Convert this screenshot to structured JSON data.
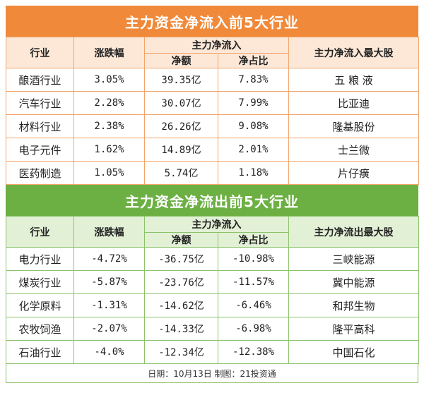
{
  "inflow": {
    "title": "主力资金净流入前5大行业",
    "headers": {
      "industry": "行业",
      "change": "涨跌幅",
      "main_flow": "主力净流入",
      "net_amount": "净额",
      "net_ratio": "净占比",
      "top_stock": "主力净流入最大股"
    },
    "rows": [
      {
        "industry": "酿酒行业",
        "change": "3.05%",
        "amount": "39.35亿",
        "ratio": "7.83%",
        "stock": "五 粮 液"
      },
      {
        "industry": "汽车行业",
        "change": "2.28%",
        "amount": "30.07亿",
        "ratio": "7.99%",
        "stock": "比亚迪"
      },
      {
        "industry": "材料行业",
        "change": "2.38%",
        "amount": "26.26亿",
        "ratio": "9.08%",
        "stock": "隆基股份"
      },
      {
        "industry": "电子元件",
        "change": "1.62%",
        "amount": "14.89亿",
        "ratio": "2.01%",
        "stock": "士兰微"
      },
      {
        "industry": "医药制造",
        "change": "1.05%",
        "amount": "5.74亿",
        "ratio": "1.18%",
        "stock": "片仔癀"
      }
    ]
  },
  "outflow": {
    "title": "主力资金净流出前5大行业",
    "headers": {
      "industry": "行业",
      "change": "涨跌幅",
      "main_flow": "主力净流入",
      "net_amount": "净额",
      "net_ratio": "净占比",
      "top_stock": "主力净流出最大股"
    },
    "rows": [
      {
        "industry": "电力行业",
        "change": "-4.72%",
        "amount": "-36.75亿",
        "ratio": "-10.98%",
        "stock": "三峡能源"
      },
      {
        "industry": "煤炭行业",
        "change": "-5.87%",
        "amount": "-23.76亿",
        "ratio": "-11.57%",
        "stock": "冀中能源"
      },
      {
        "industry": "化学原料",
        "change": "-1.31%",
        "amount": "-14.62亿",
        "ratio": "-6.46%",
        "stock": "和邦生物"
      },
      {
        "industry": "农牧饲渔",
        "change": "-2.07%",
        "amount": "-14.33亿",
        "ratio": "-6.98%",
        "stock": "隆平高科"
      },
      {
        "industry": "石油行业",
        "change": "-4.0%",
        "amount": "-12.34亿",
        "ratio": "-12.38%",
        "stock": "中国石化"
      }
    ]
  },
  "footer": "日期：10月13日  制图：21投资通",
  "colors": {
    "inflow_accent": "#f08a3a",
    "outflow_accent": "#6cb043"
  }
}
